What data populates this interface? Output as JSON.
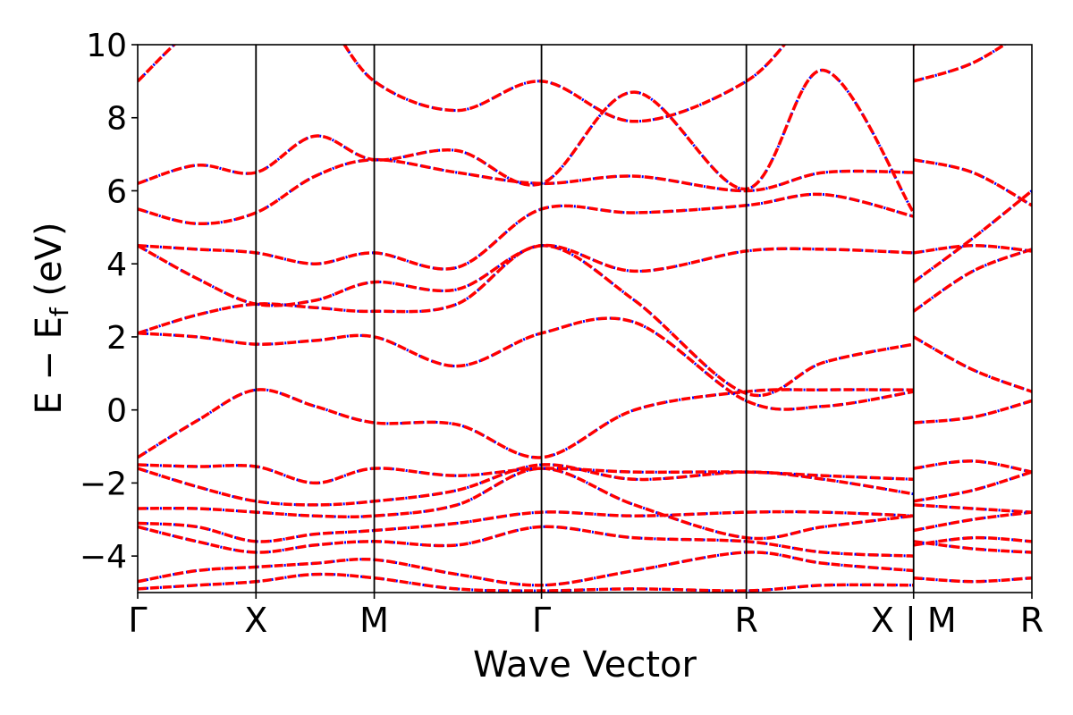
{
  "chart_data": {
    "type": "line",
    "xlabel": "Wave Vector",
    "ylabel": "E − E",
    "ylabel_subscript": "f",
    "ylabel_unit": "(eV)",
    "ylim": [
      -5,
      10
    ],
    "y_ticks": [
      -4,
      -2,
      0,
      2,
      4,
      6,
      8,
      10
    ],
    "y_tick_labels": [
      "−4",
      "−2",
      "0",
      "2",
      "4",
      "6",
      "8",
      "10"
    ],
    "grid": false,
    "legend": "none",
    "high_symmetry_points": [
      {
        "label": "Γ",
        "x": 0.0
      },
      {
        "label": "X",
        "x": 0.5
      },
      {
        "label": "M",
        "x": 1.0
      },
      {
        "label": "Γ",
        "x": 1.707
      },
      {
        "label": "R",
        "x": 2.573
      },
      {
        "label": "X | M",
        "x": 3.28
      },
      {
        "label": "R",
        "x": 3.78
      }
    ],
    "series_colors": {
      "reference": "#0000ff",
      "overlay": "#ff0000"
    },
    "series_style": {
      "reference": "dotted",
      "overlay": "dashed"
    },
    "bands_note": "",
    "bands": [
      {
        "name": "",
        "x": [
          0.0,
          0.25,
          0.5,
          0.75,
          1.0,
          1.35,
          1.707,
          2.1,
          2.573,
          2.9,
          3.28,
          3.28,
          3.53,
          3.78
        ],
        "y": [
          -4.9,
          -4.8,
          -4.7,
          -4.5,
          -4.6,
          -4.9,
          -4.95,
          -4.9,
          -4.95,
          -4.8,
          -4.8,
          -4.6,
          -4.7,
          -4.6
        ]
      },
      {
        "name": "",
        "x": [
          0.0,
          0.25,
          0.5,
          0.75,
          1.0,
          1.35,
          1.707,
          2.1,
          2.573,
          2.9,
          3.28,
          3.28,
          3.53,
          3.78
        ],
        "y": [
          -4.7,
          -4.4,
          -4.3,
          -4.2,
          -4.1,
          -4.5,
          -4.8,
          -4.4,
          -3.9,
          -4.2,
          -4.4,
          -3.6,
          -3.8,
          -3.9
        ]
      },
      {
        "name": "",
        "x": [
          0.0,
          0.25,
          0.5,
          0.75,
          1.0,
          1.35,
          1.707,
          2.1,
          2.573,
          2.9,
          3.28,
          3.28,
          3.53,
          3.78
        ],
        "y": [
          -3.2,
          -3.6,
          -3.9,
          -3.7,
          -3.6,
          -3.7,
          -3.2,
          -3.5,
          -3.6,
          -3.9,
          -4.0,
          -3.7,
          -3.5,
          -3.6
        ]
      },
      {
        "name": "",
        "x": [
          0.0,
          0.25,
          0.5,
          0.75,
          1.0,
          1.35,
          1.707,
          2.1,
          2.573,
          2.9,
          3.28,
          3.28,
          3.53,
          3.78
        ],
        "y": [
          -3.1,
          -3.2,
          -3.6,
          -3.4,
          -3.3,
          -3.1,
          -2.8,
          -2.9,
          -2.8,
          -2.8,
          -2.9,
          -3.3,
          -3.0,
          -2.8
        ]
      },
      {
        "name": "",
        "x": [
          0.0,
          0.25,
          0.5,
          0.75,
          1.0,
          1.35,
          1.707,
          2.1,
          2.573,
          2.9,
          3.28,
          3.28,
          3.53,
          3.78
        ],
        "y": [
          -2.7,
          -2.7,
          -2.8,
          -2.9,
          -2.9,
          -2.6,
          -1.6,
          -2.6,
          -3.5,
          -3.2,
          -2.9,
          -2.6,
          -2.7,
          -2.8
        ]
      },
      {
        "name": "",
        "x": [
          0.0,
          0.25,
          0.5,
          0.75,
          1.0,
          1.35,
          1.707,
          2.1,
          2.573,
          2.9,
          3.28,
          3.28,
          3.53,
          3.78
        ],
        "y": [
          -1.6,
          -2.1,
          -2.5,
          -2.6,
          -2.5,
          -2.2,
          -1.5,
          -1.9,
          -1.7,
          -1.9,
          -2.3,
          -2.5,
          -2.2,
          -1.7
        ]
      },
      {
        "name": "",
        "x": [
          0.0,
          0.25,
          0.5,
          0.75,
          1.0,
          1.35,
          1.707,
          2.1,
          2.573,
          2.9,
          3.28,
          3.28,
          3.53,
          3.78
        ],
        "y": [
          -1.5,
          -1.55,
          -1.55,
          -2.0,
          -1.6,
          -1.8,
          -1.6,
          -1.7,
          -1.7,
          -1.8,
          -1.9,
          -1.6,
          -1.4,
          -1.7
        ]
      },
      {
        "name": "",
        "x": [
          0.0,
          0.25,
          0.5,
          0.75,
          1.0,
          1.35,
          1.707,
          2.1,
          2.573,
          2.9,
          3.28,
          3.28,
          3.53,
          3.78
        ],
        "y": [
          -1.3,
          -0.3,
          0.55,
          0.1,
          -0.35,
          -0.4,
          -1.3,
          0.0,
          0.5,
          0.55,
          0.55,
          -0.35,
          -0.2,
          0.25
        ]
      },
      {
        "name": "",
        "x": [
          0.0,
          0.25,
          0.5,
          0.75,
          1.0,
          1.35,
          1.707,
          2.1,
          2.573,
          2.9,
          3.28,
          3.28,
          3.53,
          3.78
        ],
        "y": [
          2.1,
          2.0,
          1.8,
          1.9,
          2.0,
          1.2,
          2.1,
          2.4,
          0.25,
          0.1,
          0.5,
          2.0,
          1.1,
          0.5
        ]
      },
      {
        "name": "",
        "x": [
          0.0,
          0.25,
          0.5,
          0.75,
          1.0,
          1.35,
          1.707,
          2.1,
          2.573,
          2.9,
          3.28,
          3.28,
          3.53,
          3.78
        ],
        "y": [
          2.1,
          2.6,
          2.9,
          2.8,
          2.7,
          2.9,
          4.5,
          3.0,
          0.45,
          1.3,
          1.8,
          2.7,
          3.8,
          4.4
        ]
      },
      {
        "name": "",
        "x": [
          0.0,
          0.25,
          0.5,
          0.75,
          1.0,
          1.35,
          1.707,
          2.1,
          2.573,
          2.9,
          3.28,
          3.28,
          3.53,
          3.78
        ],
        "y": [
          4.5,
          3.6,
          2.9,
          3.0,
          3.5,
          3.3,
          4.5,
          3.8,
          4.35,
          4.4,
          4.3,
          4.3,
          4.5,
          4.35
        ]
      },
      {
        "name": "",
        "x": [
          0.0,
          0.25,
          0.5,
          0.75,
          1.0,
          1.35,
          1.707,
          2.1,
          2.573,
          2.9,
          3.28,
          3.28,
          3.53,
          3.78
        ],
        "y": [
          4.5,
          4.4,
          4.3,
          4.0,
          4.3,
          3.9,
          5.5,
          5.4,
          5.6,
          5.9,
          5.3,
          3.5,
          4.7,
          6.0
        ]
      },
      {
        "name": "",
        "x": [
          0.0,
          0.25,
          0.5,
          0.75,
          1.0,
          1.35,
          1.707,
          2.1,
          2.573,
          2.9,
          3.28,
          3.28,
          3.53,
          3.78
        ],
        "y": [
          5.5,
          5.1,
          5.4,
          6.4,
          6.85,
          6.5,
          6.2,
          6.4,
          6.0,
          6.5,
          6.5,
          6.85,
          6.5,
          5.6
        ]
      },
      {
        "name": "",
        "x": [
          0.0,
          0.25,
          0.5,
          0.75,
          1.0,
          1.35,
          1.707,
          2.1,
          2.573,
          2.9,
          3.28,
          3.28,
          3.53,
          3.78
        ],
        "y": [
          6.2,
          6.7,
          6.5,
          7.5,
          6.85,
          7.1,
          6.2,
          8.7,
          6.05,
          9.3,
          5.4,
          9.0,
          9.5,
          10.5
        ]
      },
      {
        "name": "",
        "x": [
          0.0,
          0.25,
          0.5,
          0.75,
          1.0,
          1.35,
          1.707,
          2.1,
          2.573,
          2.9,
          3.28,
          3.28,
          3.53,
          3.78
        ],
        "y": [
          9.0,
          10.5,
          11.0,
          11.0,
          9.0,
          8.2,
          9.0,
          7.9,
          9.0,
          11.0,
          11.0,
          10.0,
          11.0,
          11.0
        ]
      }
    ]
  }
}
